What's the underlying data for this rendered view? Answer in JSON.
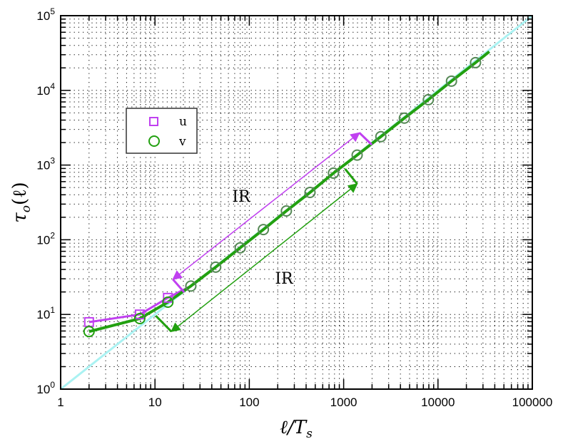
{
  "chart_data": {
    "type": "line",
    "title": "",
    "xlabel": "ℓ/T",
    "xlabel_sub": "s",
    "ylabel": "τ",
    "ylabel_sub": "o",
    "ylabel_suffix": "(ℓ)",
    "xscale": "log",
    "yscale": "log",
    "xlim": [
      1,
      100000
    ],
    "ylim": [
      1,
      100000
    ],
    "grid": "dotted",
    "xticks": [
      1,
      10,
      100,
      1000,
      10000,
      100000
    ],
    "xtick_labels": [
      "1",
      "10",
      "100",
      "1000",
      "10000",
      "100000"
    ],
    "yticks": [
      1,
      10,
      100,
      1000,
      10000,
      100000
    ],
    "ytick_labels": [
      {
        "base": "10",
        "exp": "0"
      },
      {
        "base": "10",
        "exp": "1"
      },
      {
        "base": "10",
        "exp": "2"
      },
      {
        "base": "10",
        "exp": "3"
      },
      {
        "base": "10",
        "exp": "4"
      },
      {
        "base": "10",
        "exp": "5"
      }
    ],
    "legend_position": "upper-left",
    "reference_line": {
      "name": "y = x",
      "color": "#aaf2f2",
      "x": [
        1,
        100000
      ],
      "y": [
        1,
        100000
      ]
    },
    "series": [
      {
        "name": "u",
        "marker": "square",
        "color": "#c040f0",
        "x": [
          2.0,
          6.9,
          13.7
        ],
        "y": [
          7.9,
          10,
          16.7
        ]
      },
      {
        "name": "v",
        "marker": "circle",
        "color": "#22a010",
        "x": [
          2.0,
          6.9,
          13.7,
          24,
          44,
          80,
          141,
          247,
          440,
          780,
          1390,
          2480,
          4400,
          7900,
          13900,
          25000
        ],
        "y": [
          5.9,
          8.8,
          14.6,
          24,
          43,
          78,
          137,
          243,
          430,
          780,
          1360,
          2400,
          4250,
          7500,
          13300,
          23500
        ],
        "line_end": [
          35000,
          33000
        ]
      }
    ],
    "annotations": [
      {
        "text": "IR",
        "color": "#c040f0",
        "x": 83,
        "y": 390,
        "arrow": {
          "from": [
            15.5,
            29.5
          ],
          "to": [
            1470,
            2700
          ]
        },
        "brackets": [
          [
            [
              15.5,
              29.5
            ],
            [
              20.4,
              19.8
            ]
          ],
          [
            [
              1470,
              2700
            ],
            [
              1990,
              1870
            ]
          ]
        ]
      },
      {
        "text": "IR",
        "color": "#22a010",
        "x": 235,
        "y": 31,
        "arrow": {
          "from": [
            14.9,
            5.9
          ],
          "to": [
            1390,
            560
          ]
        },
        "brackets": [
          [
            [
              14.9,
              5.9
            ],
            [
              10.2,
              9.6
            ]
          ],
          [
            [
              1390,
              560
            ],
            [
              1035,
              890
            ]
          ]
        ]
      }
    ]
  }
}
